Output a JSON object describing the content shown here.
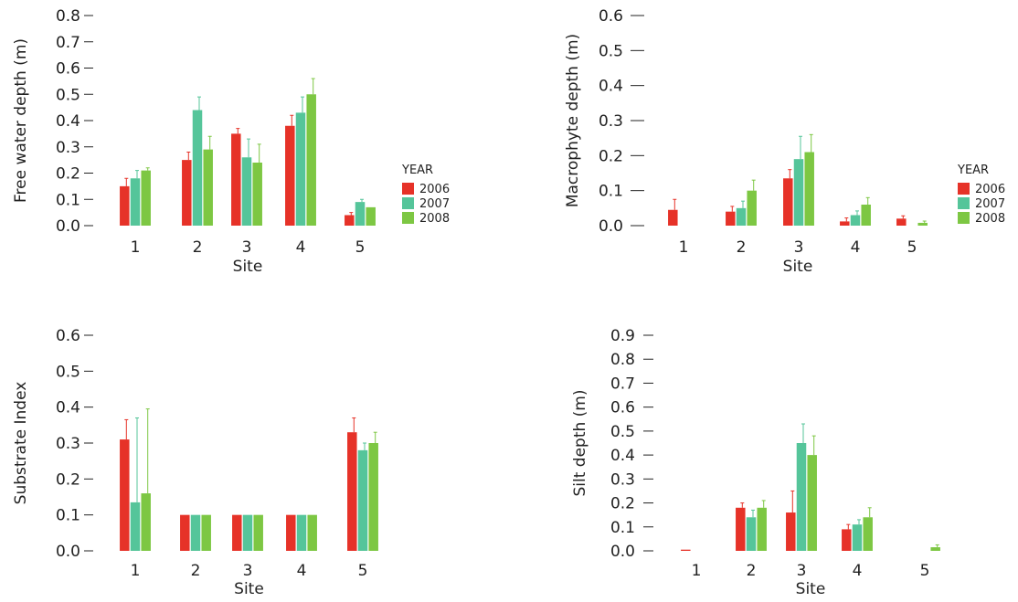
{
  "colors": {
    "2006": "#e63228",
    "2007": "#55c59a",
    "2008": "#7dc743"
  },
  "chart_data": [
    {
      "type": "bar",
      "ylabel": "Free water depth (m)",
      "xlabel": "Site",
      "categories": [
        "1",
        "2",
        "3",
        "4",
        "5"
      ],
      "yticks": [
        "0.0",
        "0.1",
        "0.2",
        "0.3",
        "0.4",
        "0.5",
        "0.6",
        "0.7",
        "0.8"
      ],
      "ylim": [
        0,
        0.8
      ],
      "legend": {
        "title": "YEAR",
        "placement": "right"
      },
      "series": [
        {
          "name": "2006",
          "values": [
            0.15,
            0.25,
            0.35,
            0.38,
            0.04
          ],
          "errors": [
            0.03,
            0.03,
            0.02,
            0.04,
            0.01
          ]
        },
        {
          "name": "2007",
          "values": [
            0.18,
            0.44,
            0.26,
            0.43,
            0.09
          ],
          "errors": [
            0.03,
            0.05,
            0.07,
            0.06,
            0.01
          ]
        },
        {
          "name": "2008",
          "values": [
            0.21,
            0.29,
            0.24,
            0.5,
            0.07
          ],
          "errors": [
            0.01,
            0.05,
            0.07,
            0.06,
            0.0
          ]
        }
      ]
    },
    {
      "type": "bar",
      "ylabel": "Macrophyte depth (m)",
      "xlabel": "Site",
      "categories": [
        "1",
        "2",
        "3",
        "4",
        "5"
      ],
      "yticks": [
        "0.0",
        "0.1",
        "0.2",
        "0.3",
        "0.4",
        "0.5",
        "0.6"
      ],
      "ylim": [
        0,
        0.6
      ],
      "legend": {
        "title": "YEAR",
        "placement": "right"
      },
      "series": [
        {
          "name": "2006",
          "values": [
            0.045,
            0.04,
            0.135,
            0.012,
            0.02
          ],
          "errors": [
            0.03,
            0.015,
            0.025,
            0.01,
            0.008
          ]
        },
        {
          "name": "2007",
          "values": [
            0.0,
            0.05,
            0.19,
            0.03,
            0.0
          ],
          "errors": [
            0.0,
            0.02,
            0.065,
            0.012,
            0.0
          ]
        },
        {
          "name": "2008",
          "values": [
            0.0,
            0.1,
            0.21,
            0.06,
            0.008
          ],
          "errors": [
            0.0,
            0.03,
            0.05,
            0.02,
            0.005
          ]
        }
      ]
    },
    {
      "type": "bar",
      "ylabel": "Substrate Index",
      "xlabel": "Site",
      "categories": [
        "1",
        "2",
        "3",
        "4",
        "5"
      ],
      "yticks": [
        "0.0",
        "0.1",
        "0.2",
        "0.3",
        "0.4",
        "0.5",
        "0.6"
      ],
      "ylim": [
        0,
        0.6
      ],
      "series": [
        {
          "name": "2006",
          "values": [
            0.31,
            0.1,
            0.1,
            0.1,
            0.33
          ],
          "errors": [
            0.055,
            0.0,
            0.0,
            0.0,
            0.04
          ]
        },
        {
          "name": "2007",
          "values": [
            0.135,
            0.1,
            0.1,
            0.1,
            0.28
          ],
          "errors": [
            0.235,
            0.0,
            0.0,
            0.0,
            0.02
          ]
        },
        {
          "name": "2008",
          "values": [
            0.16,
            0.1,
            0.1,
            0.1,
            0.3
          ],
          "errors": [
            0.235,
            0.0,
            0.0,
            0.0,
            0.03
          ]
        }
      ]
    },
    {
      "type": "bar",
      "ylabel": "Silt depth (m)",
      "xlabel": "Site",
      "categories": [
        "1",
        "2",
        "3",
        "4",
        "5"
      ],
      "yticks": [
        "0.0",
        "0.1",
        "0.2",
        "0.3",
        "0.4",
        "0.5",
        "0.6",
        "0.7",
        "0.8",
        "0.9"
      ],
      "ylim": [
        0,
        0.9
      ],
      "series": [
        {
          "name": "2006",
          "values": [
            0.005,
            0.18,
            0.16,
            0.09,
            0.0
          ],
          "errors": [
            0.0,
            0.02,
            0.09,
            0.02,
            0.0
          ]
        },
        {
          "name": "2007",
          "values": [
            0.0,
            0.14,
            0.45,
            0.11,
            0.0
          ],
          "errors": [
            0.0,
            0.03,
            0.08,
            0.02,
            0.0
          ]
        },
        {
          "name": "2008",
          "values": [
            0.0,
            0.18,
            0.4,
            0.14,
            0.015
          ],
          "errors": [
            0.0,
            0.03,
            0.08,
            0.04,
            0.01
          ]
        }
      ]
    }
  ]
}
